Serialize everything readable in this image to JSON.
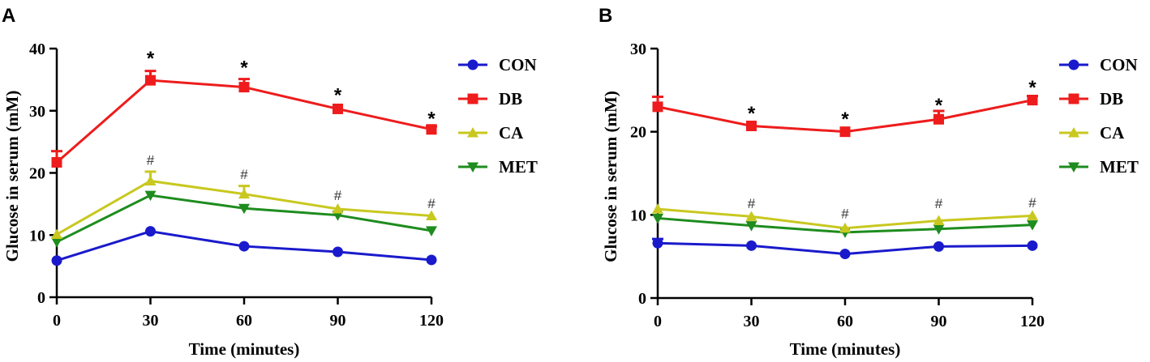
{
  "chart_data": [
    {
      "panel": "A",
      "type": "line",
      "xlabel": "Time (minutes)",
      "ylabel": "Glucose in serum (mM)",
      "x": [
        0,
        30,
        60,
        90,
        120
      ],
      "xticks": [
        "0",
        "30",
        "60",
        "90",
        "120"
      ],
      "yticks": [
        "0",
        "10",
        "20",
        "30",
        "40"
      ],
      "xlim": [
        0,
        120
      ],
      "ylim": [
        0,
        40
      ],
      "legend_position": "right",
      "series": [
        {
          "name": "CON",
          "color": "#1a1acc",
          "marker": "circle",
          "values": [
            5.9,
            10.6,
            8.2,
            7.3,
            6.0
          ],
          "errors": [
            0,
            0,
            0,
            0,
            0
          ]
        },
        {
          "name": "DB",
          "color": "#ee1c1c",
          "marker": "square",
          "values": [
            21.7,
            34.9,
            33.8,
            30.3,
            27.0
          ],
          "errors": [
            1.8,
            1.5,
            1.3,
            0,
            0.5
          ]
        },
        {
          "name": "CA",
          "color": "#c8c820",
          "marker": "triangle-up",
          "values": [
            10.1,
            18.7,
            16.6,
            14.2,
            13.1
          ],
          "errors": [
            0,
            1.5,
            1.3,
            0,
            0
          ]
        },
        {
          "name": "MET",
          "color": "#1e8c1e",
          "marker": "triangle-down",
          "values": [
            8.9,
            16.4,
            14.3,
            13.2,
            10.7
          ],
          "errors": [
            0,
            0,
            0,
            0,
            0
          ]
        }
      ],
      "annotations": [
        {
          "text": "*",
          "kind": "star",
          "x": 30,
          "y": 38.7
        },
        {
          "text": "*",
          "kind": "star",
          "x": 60,
          "y": 37.2
        },
        {
          "text": "*",
          "kind": "star",
          "x": 90,
          "y": 32.8
        },
        {
          "text": "*",
          "kind": "star",
          "x": 120,
          "y": 29.0
        },
        {
          "text": "#",
          "kind": "hash",
          "x": 30,
          "y": 22.1
        },
        {
          "text": "#",
          "kind": "hash",
          "x": 60,
          "y": 19.8
        },
        {
          "text": "#",
          "kind": "hash",
          "x": 90,
          "y": 16.4
        },
        {
          "text": "#",
          "kind": "hash",
          "x": 120,
          "y": 15.1
        }
      ]
    },
    {
      "panel": "B",
      "type": "line",
      "xlabel": "Time (minutes)",
      "ylabel": "Glucose in serum (mM)",
      "x": [
        0,
        30,
        60,
        90,
        120
      ],
      "xticks": [
        "0",
        "30",
        "60",
        "90",
        "120"
      ],
      "yticks": [
        "0",
        "10",
        "20",
        "30"
      ],
      "xlim": [
        0,
        120
      ],
      "ylim": [
        0,
        30
      ],
      "legend_position": "right",
      "series": [
        {
          "name": "CON",
          "color": "#1a1acc",
          "marker": "circle",
          "values": [
            6.6,
            6.3,
            5.3,
            6.2,
            6.3
          ],
          "errors": [
            0.5,
            0,
            0,
            0,
            0
          ]
        },
        {
          "name": "DB",
          "color": "#ee1c1c",
          "marker": "square",
          "values": [
            23.0,
            20.7,
            20.0,
            21.5,
            23.8
          ],
          "errors": [
            1.2,
            0,
            0,
            1.0,
            0.5
          ]
        },
        {
          "name": "CA",
          "color": "#c8c820",
          "marker": "triangle-up",
          "values": [
            10.7,
            9.8,
            8.4,
            9.3,
            9.9
          ],
          "errors": [
            0,
            0,
            0,
            0,
            0
          ]
        },
        {
          "name": "MET",
          "color": "#1e8c1e",
          "marker": "triangle-down",
          "values": [
            9.6,
            8.7,
            7.9,
            8.3,
            8.8
          ],
          "errors": [
            0,
            0,
            0,
            0,
            0
          ]
        }
      ],
      "annotations": [
        {
          "text": "*",
          "kind": "star",
          "x": 30,
          "y": 22.4
        },
        {
          "text": "*",
          "kind": "star",
          "x": 60,
          "y": 21.7
        },
        {
          "text": "*",
          "kind": "star",
          "x": 90,
          "y": 23.4
        },
        {
          "text": "*",
          "kind": "star",
          "x": 120,
          "y": 25.5
        },
        {
          "text": "#",
          "kind": "hash",
          "x": 30,
          "y": 11.4
        },
        {
          "text": "#",
          "kind": "hash",
          "x": 60,
          "y": 10.2
        },
        {
          "text": "#",
          "kind": "hash",
          "x": 90,
          "y": 11.4
        },
        {
          "text": "#",
          "kind": "hash",
          "x": 120,
          "y": 11.5
        }
      ]
    }
  ]
}
